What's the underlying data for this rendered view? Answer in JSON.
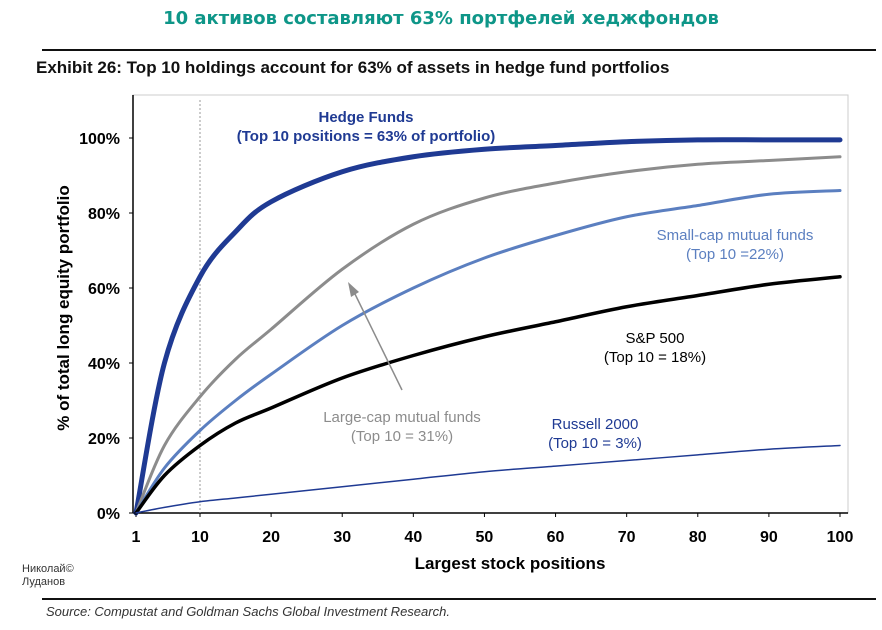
{
  "header": {
    "ru_title": "10 активов составляют 63% портфелей хеджфондов",
    "exhibit": "Exhibit 26: Top 10 holdings account for 63% of assets in hedge fund portfolios"
  },
  "footer": {
    "source": "Source: Compustat and Goldman Sachs Global Investment Research.",
    "author_line1": "Николай©",
    "author_line2": "Луданов"
  },
  "chart_data": {
    "type": "line",
    "title": "Top 10 holdings account for 63% of assets in hedge fund portfolios",
    "xlabel": "Largest stock positions",
    "ylabel": "% of total long equity portfolio",
    "xlim": [
      1,
      100
    ],
    "ylim": [
      0,
      100
    ],
    "xticks": [
      "1",
      "10",
      "20",
      "30",
      "40",
      "50",
      "60",
      "70",
      "80",
      "90",
      "100"
    ],
    "yticks": [
      "0%",
      "20%",
      "40%",
      "60%",
      "80%",
      "100%"
    ],
    "x": [
      1,
      5,
      10,
      15,
      20,
      30,
      40,
      50,
      60,
      70,
      80,
      90,
      100
    ],
    "series": [
      {
        "name": "Hedge Funds",
        "color": "#1f3a93",
        "values": [
          0,
          40,
          63,
          75,
          83,
          91,
          95,
          97,
          98,
          99,
          99.5,
          99.5,
          99.5
        ],
        "label": [
          "Hedge Funds",
          "(Top 10 positions = 63% of portfolio)"
        ]
      },
      {
        "name": "Large-cap mutual funds",
        "color": "#8c8c8c",
        "values": [
          0,
          18,
          31,
          41,
          49,
          65,
          77,
          84,
          88,
          91,
          93,
          94,
          95
        ],
        "label": [
          "Large-cap mutual funds",
          "(Top 10 = 31%)"
        ]
      },
      {
        "name": "Small-cap mutual funds",
        "color": "#5b7fc0",
        "values": [
          0,
          12,
          22,
          30,
          37,
          50,
          60,
          68,
          74,
          79,
          82,
          85,
          86
        ],
        "label": [
          "Small-cap mutual funds",
          "(Top 10 =22%)"
        ]
      },
      {
        "name": "S&P 500",
        "color": "#000000",
        "values": [
          0,
          10,
          18,
          24,
          28,
          36,
          42,
          47,
          51,
          55,
          58,
          61,
          63
        ],
        "label": [
          "S&P 500",
          "(Top 10 = 18%)"
        ]
      },
      {
        "name": "Russell 2000",
        "color": "#1f3a93",
        "values": [
          0,
          1.5,
          3,
          4,
          5,
          7,
          9,
          11,
          12.5,
          14,
          15.5,
          17,
          18
        ],
        "label": [
          "Russell 2000",
          "(Top 10 = 3%)"
        ]
      }
    ],
    "reference_line_x": 10,
    "grid": false
  }
}
